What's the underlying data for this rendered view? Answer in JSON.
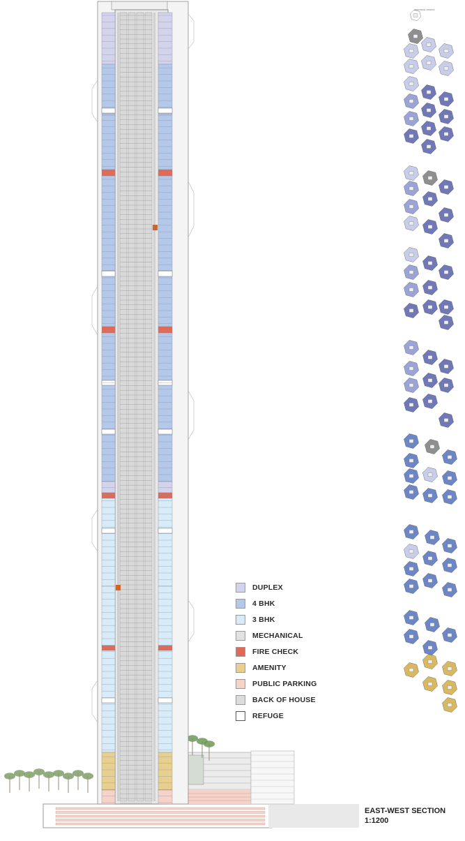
{
  "title": {
    "line1": "EAST-WEST SECTION",
    "line2": "1:1200"
  },
  "key_plan_label": "INDIVIDUAL STACKS",
  "legend": [
    {
      "label": "DUPLEX",
      "color": "#d3d3ec"
    },
    {
      "label": "4 BHK",
      "color": "#b4c8ea"
    },
    {
      "label": "3 BHK",
      "color": "#d7ebf8"
    },
    {
      "label": "MECHANICAL",
      "color": "#e2e2e2"
    },
    {
      "label": "FIRE CHECK",
      "color": "#e06a57"
    },
    {
      "label": "AMENITY",
      "color": "#e6cf8f"
    },
    {
      "label": "PUBLIC PARKING",
      "color": "#f6d3c8"
    },
    {
      "label": "BACK OF HOUSE",
      "color": "#dcdcdc"
    },
    {
      "label": "REFUGE",
      "color": "#ffffff"
    }
  ],
  "palette": {
    "duplex": "#d3d3ec",
    "bhk4": "#b4c8ea",
    "bhk3": "#d7ebf8",
    "fire": "#e06a57",
    "amenity": "#e6cf8f",
    "parking": "#f6d3c8",
    "core": "#dadada",
    "plan_dark": "#7078b8",
    "plan_mid": "#9aa4d6",
    "plan_light": "#c8cdea",
    "plan_grey": "#8f8f8f",
    "plan_gold": "#d9b862"
  }
}
